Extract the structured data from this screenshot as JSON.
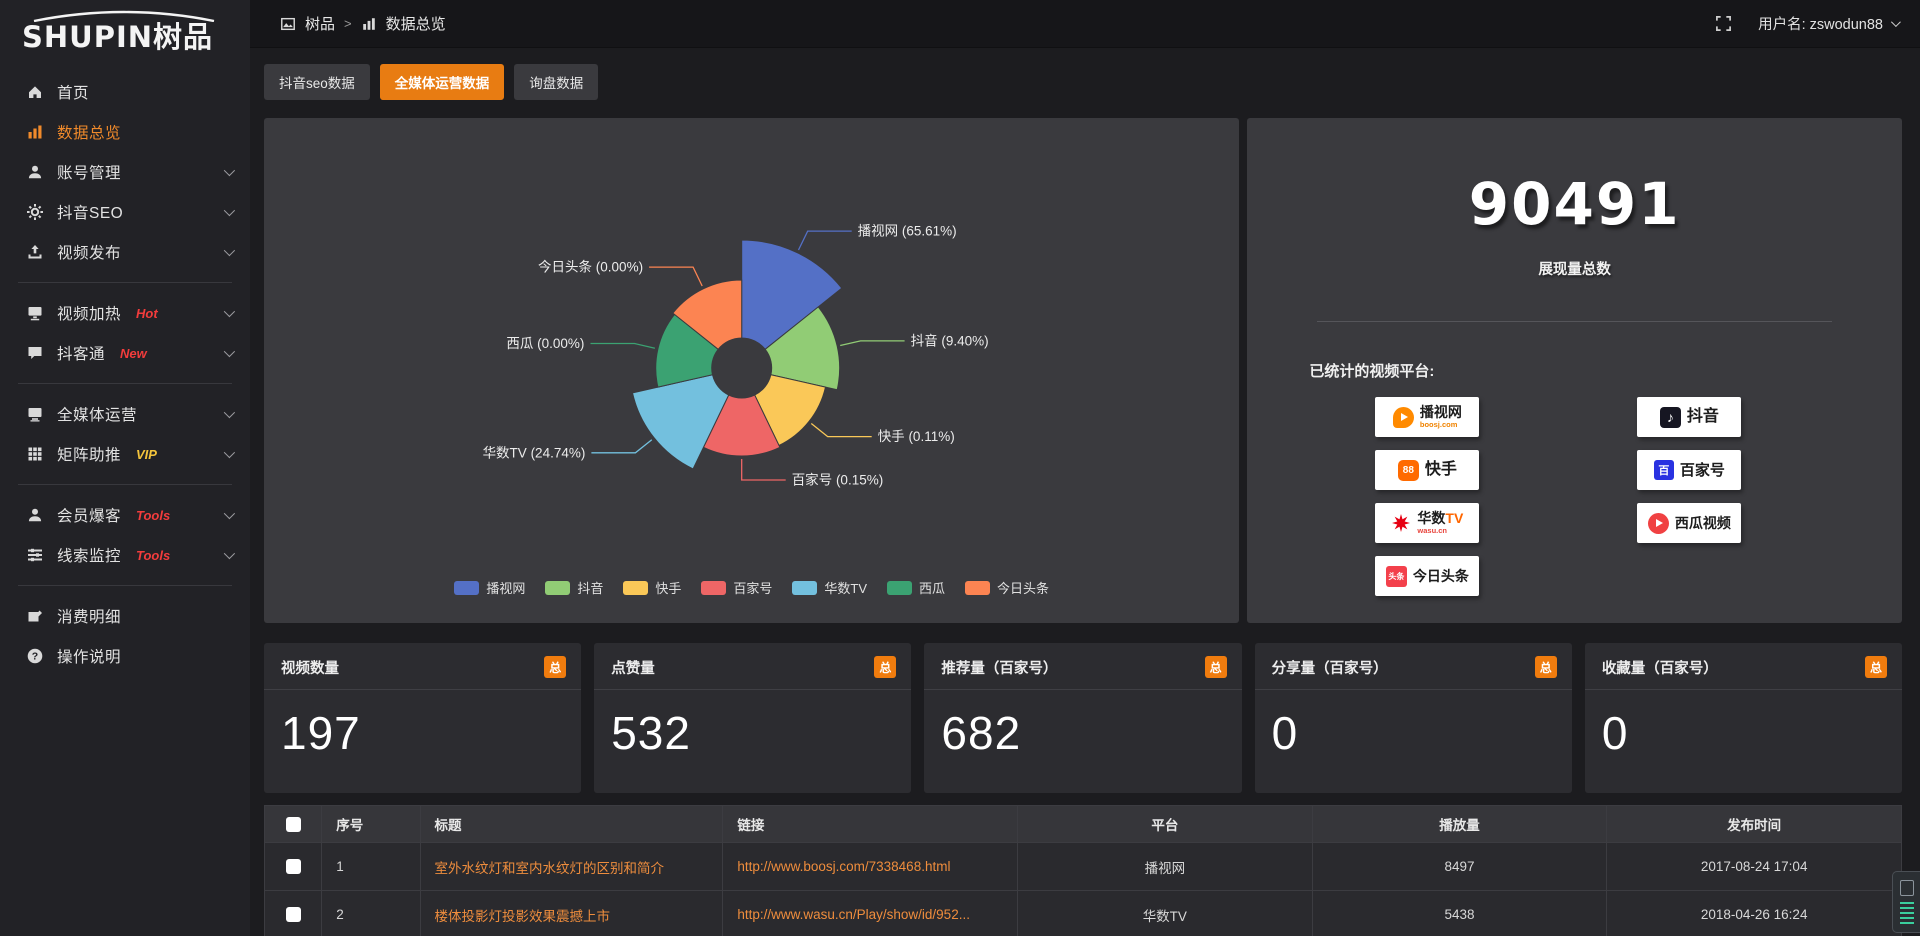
{
  "brand": {
    "name": "SHUPIN",
    "name_cn": "树品"
  },
  "topbar": {
    "breadcrumb_root": "树品",
    "breadcrumb_sep": ">",
    "breadcrumb_current": "数据总览",
    "username": "用户名: zswodun88"
  },
  "tabs": {
    "items": [
      {
        "label": "抖音seo数据"
      },
      {
        "label": "全媒体运营数据",
        "active": true
      },
      {
        "label": "询盘数据"
      }
    ]
  },
  "sidebar": {
    "items": [
      {
        "label": "首页"
      },
      {
        "label": "数据总览",
        "active": true
      },
      {
        "label": "账号管理"
      },
      {
        "label": "抖音SEO"
      },
      {
        "label": "视频发布"
      },
      {
        "label": "视频加热",
        "badge": "Hot"
      },
      {
        "label": "抖客通",
        "badge": "New"
      },
      {
        "label": "全媒体运营"
      },
      {
        "label": "矩阵助推",
        "badge": "VIP"
      },
      {
        "label": "会员爆客",
        "badge": "Tools"
      },
      {
        "label": "线索监控",
        "badge": "Tools"
      },
      {
        "label": "消费明细"
      },
      {
        "label": "操作说明"
      }
    ]
  },
  "chart_data": {
    "type": "pie",
    "variant": "rose",
    "title": "",
    "legend_position": "bottom",
    "label_format": "{name} ({percent}%)",
    "inner_radius": 30,
    "start_angle_deg": -90,
    "clockwise": true,
    "series": [
      {
        "name": "播视网",
        "percent": 65.61,
        "color": "#5470c6",
        "radius": 128
      },
      {
        "name": "抖音",
        "percent": 9.4,
        "color": "#91cc75",
        "radius": 98
      },
      {
        "name": "快手",
        "percent": 0.11,
        "color": "#fac858",
        "radius": 86
      },
      {
        "name": "百家号",
        "percent": 0.15,
        "color": "#ee6666",
        "radius": 88
      },
      {
        "name": "华数TV",
        "percent": 24.74,
        "color": "#73c0de",
        "radius": 112
      },
      {
        "name": "西瓜",
        "percent": 0.0,
        "color": "#3ba272",
        "radius": 86
      },
      {
        "name": "今日头条",
        "percent": 0.0,
        "color": "#fc8452",
        "radius": 88
      }
    ]
  },
  "overview": {
    "total": "90491",
    "total_label": "展现量总数",
    "platforms_title": "已统计的视频平台:",
    "platforms": [
      {
        "name": "播视网",
        "sub": "boosj.com"
      },
      {
        "name": "抖音",
        "sub": ""
      },
      {
        "name": "快手",
        "sub": ""
      },
      {
        "name": "百家号",
        "sub": ""
      },
      {
        "name": "华数",
        "tv": "TV",
        "sub": "wasu.cn"
      },
      {
        "name": "西瓜视频",
        "sub": ""
      },
      {
        "name": "今日头条",
        "sub": "",
        "icon_text": "头条"
      }
    ]
  },
  "stat_cards": [
    {
      "label": "视频数量",
      "badge": "总",
      "value": "197"
    },
    {
      "label": "点赞量",
      "badge": "总",
      "value": "532"
    },
    {
      "label": "推荐量（百家号）",
      "badge": "总",
      "value": "682"
    },
    {
      "label": "分享量（百家号）",
      "badge": "总",
      "value": "0"
    },
    {
      "label": "收藏量（百家号）",
      "badge": "总",
      "value": "0"
    }
  ],
  "table": {
    "columns": {
      "seq": "序号",
      "title": "标题",
      "link": "链接",
      "platform": "平台",
      "plays": "播放量",
      "time": "发布时间"
    },
    "rows": [
      {
        "seq": "1",
        "title": "室外水纹灯和室内水纹灯的区别和简介",
        "link": "http://www.boosj.com/7338468.html",
        "platform": "播视网",
        "plays": "8497",
        "time": "2017-08-24 17:04"
      },
      {
        "seq": "2",
        "title": "楼体投影灯投影效果震撼上市",
        "link": "http://www.wasu.cn/Play/show/id/952...",
        "platform": "华数TV",
        "plays": "5438",
        "time": "2018-04-26 16:24"
      }
    ]
  },
  "colors": {
    "accent_orange": "#e87c12",
    "badge_orange": "#f07c0e",
    "link_orange": "#ef8d3d",
    "sidebar_active": "#f08a2b",
    "hot_red": "#f23c3c",
    "vip_yellow": "#f5c53c",
    "panel_bg": "#3a3a3e",
    "card_bg": "#2c2c30"
  }
}
